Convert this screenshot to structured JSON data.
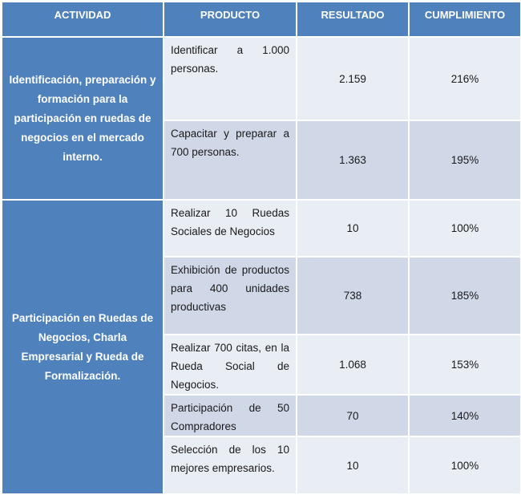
{
  "headers": [
    "ACTIVIDAD",
    "PRODUCTO",
    "RESULTADO",
    "CUMPLIMIENTO"
  ],
  "groups": [
    {
      "activity": "Identificación, preparación y formación para la participación  en ruedas de negocios  en el mercado interno.",
      "rows": [
        {
          "product": "Identificar a 1.000 personas.",
          "result": "2.159",
          "compliance": "216%"
        },
        {
          "product": "Capacitar y preparar a 700 personas.",
          "result": "1.363",
          "compliance": "195%"
        }
      ]
    },
    {
      "activity": "Participación  en Ruedas de Negocios, Charla Empresarial y Rueda de Formalización.",
      "rows": [
        {
          "product": "Realizar 10 Ruedas Sociales de Negocios",
          "result": "10",
          "compliance": "100%"
        },
        {
          "product": "Exhibición de productos para 400 unidades productivas",
          "result": "738",
          "compliance": "185%"
        },
        {
          "product": "Realizar 700 citas, en la Rueda Social de Negocios.",
          "result": "1.068",
          "compliance": "153%"
        },
        {
          "product": "Participación de 50 Compradores",
          "result": "70",
          "compliance": "140%"
        },
        {
          "product": "Selección de los 10 mejores empresarios.",
          "result": "10",
          "compliance": "100%"
        }
      ]
    }
  ]
}
